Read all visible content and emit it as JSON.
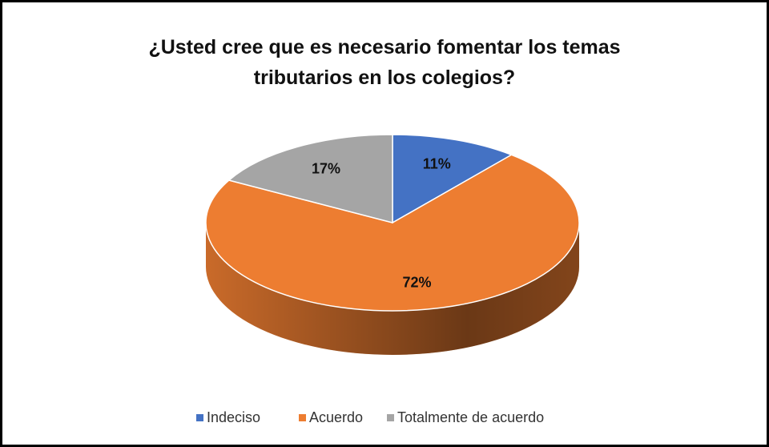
{
  "chart_data": {
    "type": "pie",
    "title": "¿Usted cree que es necesario fomentar los temas tributarios en los colegios?",
    "categories": [
      "Indeciso",
      "Acuerdo",
      "Totalmente de acuerdo"
    ],
    "values": [
      11,
      72,
      17
    ],
    "value_labels": [
      "11%",
      "72%",
      "17%"
    ],
    "colors": [
      "#4472c4",
      "#ed7d31",
      "#a5a5a5"
    ],
    "legend": "bottom"
  }
}
